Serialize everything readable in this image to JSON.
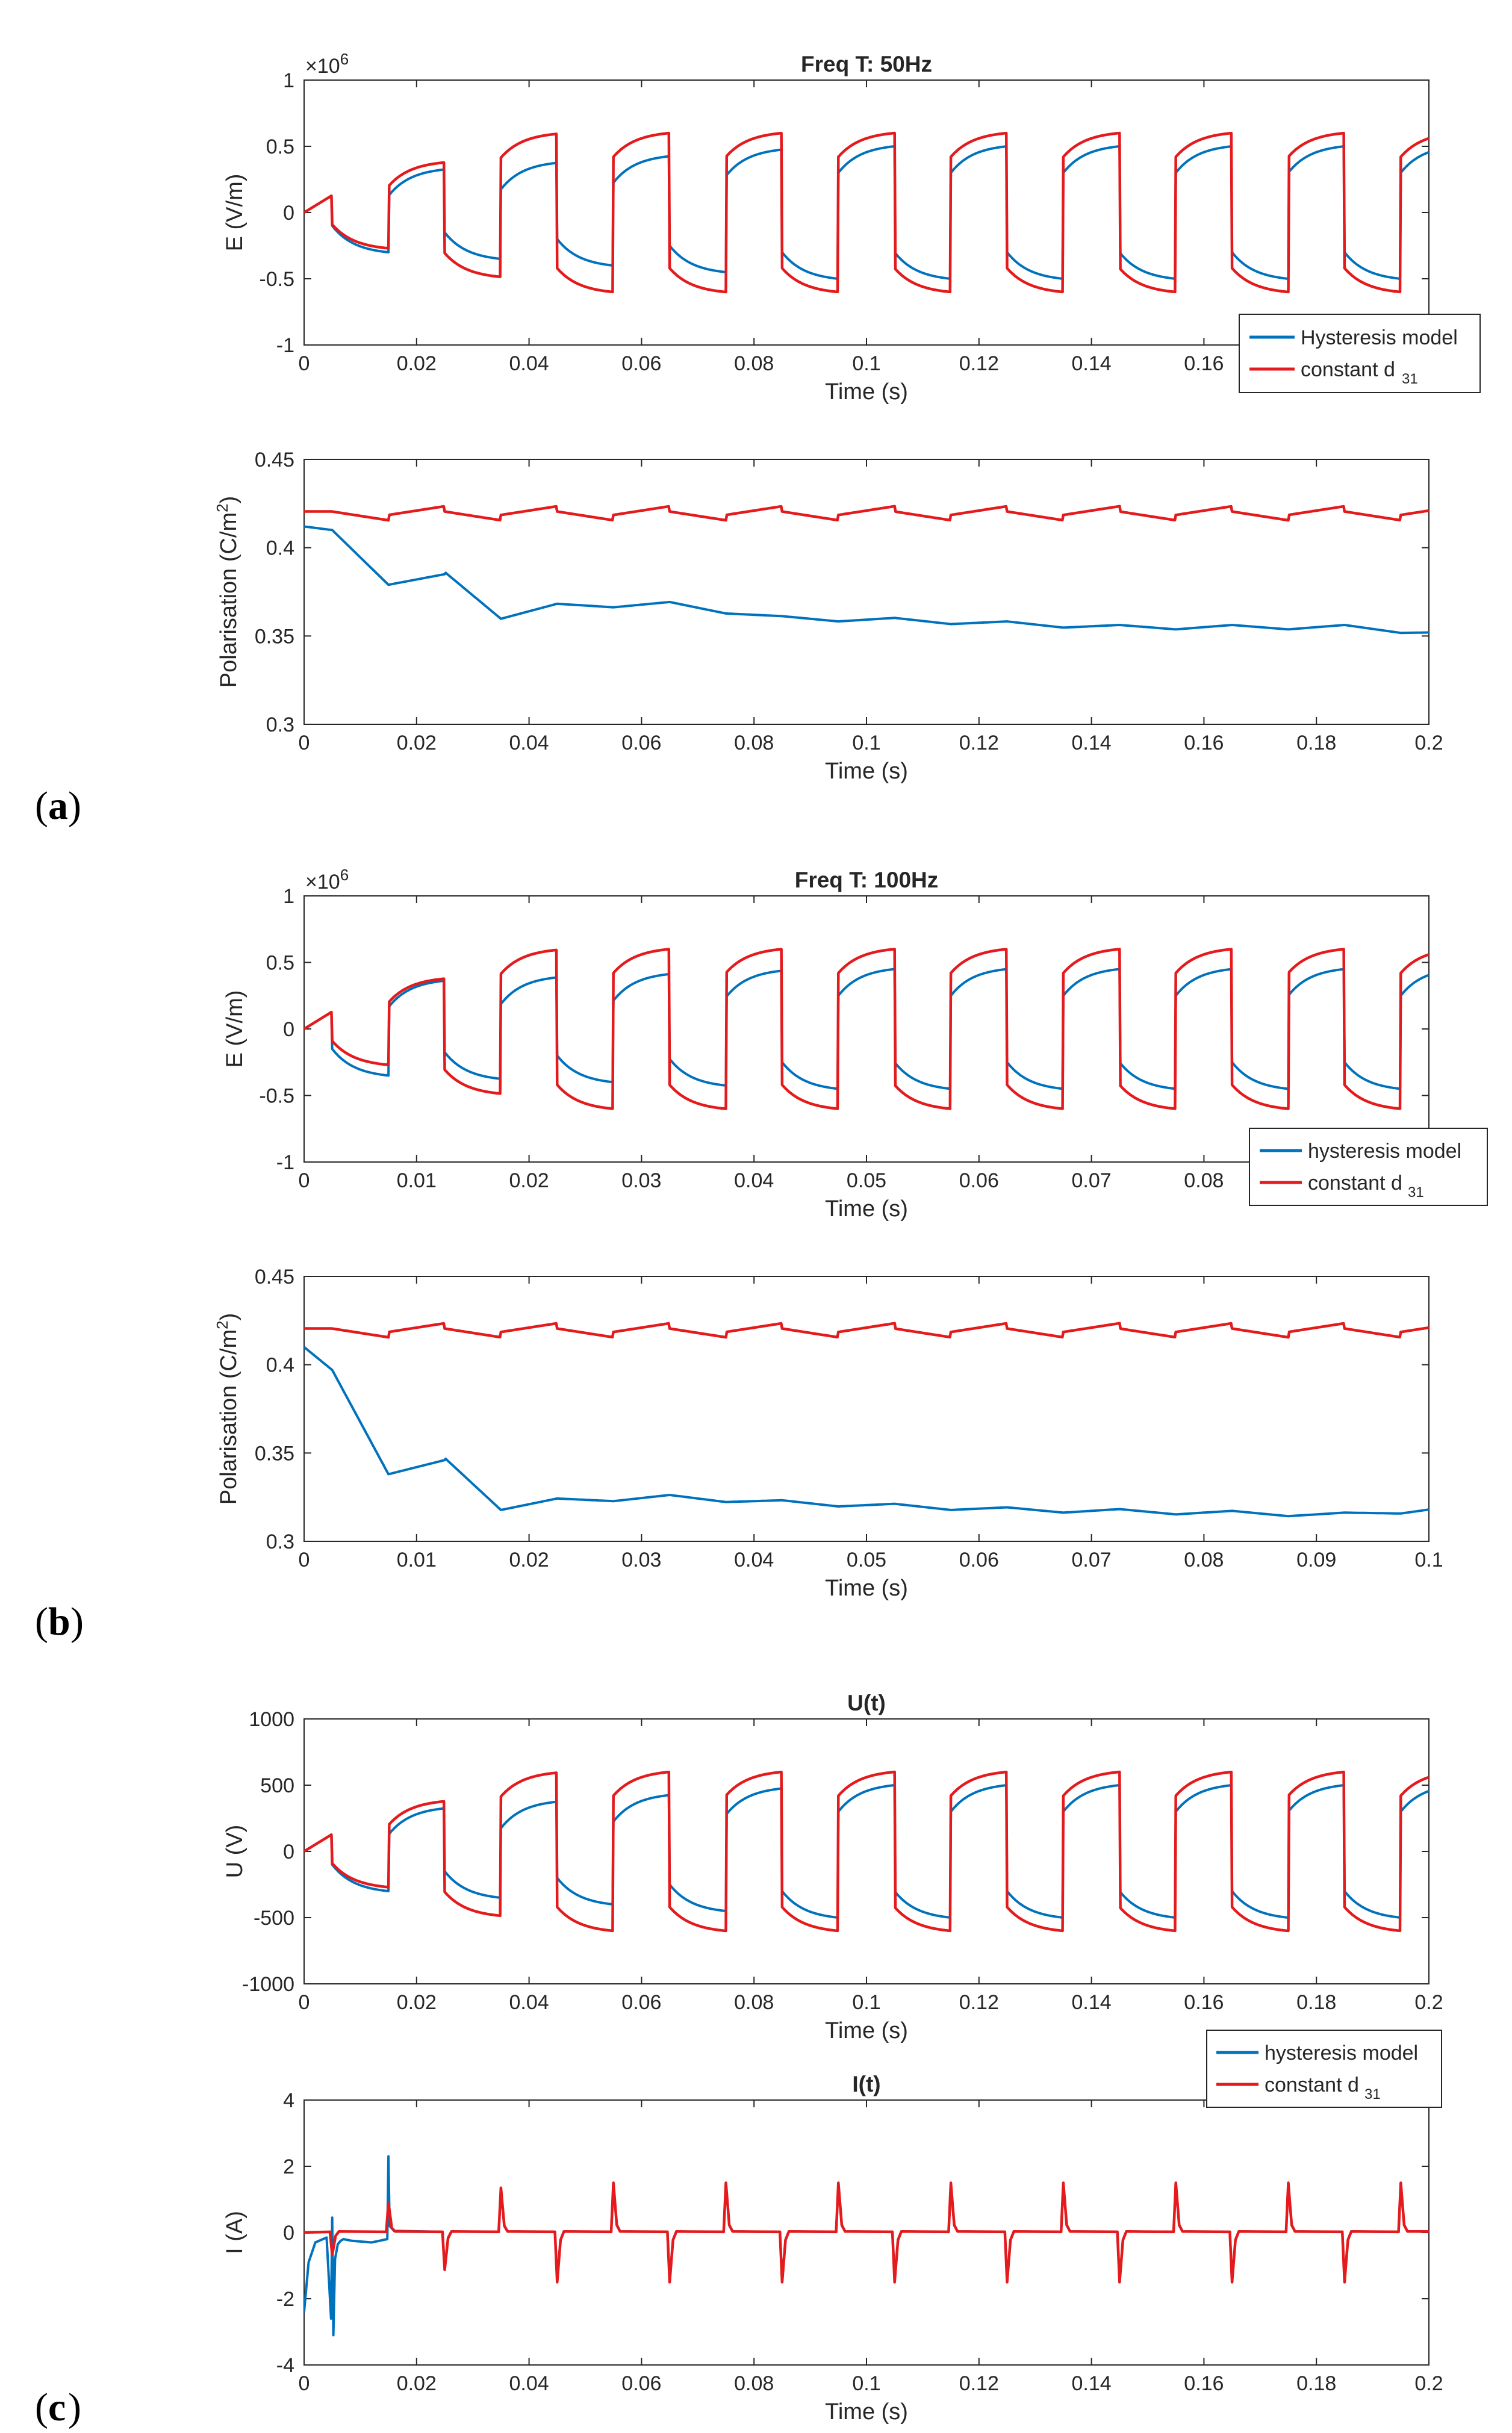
{
  "panel_labels": [
    "a",
    "b",
    "c"
  ],
  "legend_entries": {
    "a": [
      "Hysteresis model",
      "constant d",
      "31"
    ],
    "b": [
      "hysteresis model",
      "constant d",
      "31"
    ],
    "c": [
      "hysteresis model",
      "constant d",
      "31"
    ]
  },
  "colors": {
    "hysteresis": "#0072BD",
    "constant": "#E41A1C",
    "axis": "#262626",
    "grid": "#e6e6e6"
  },
  "chart_data": [
    {
      "id": "a-E",
      "type": "line",
      "title": "Freq T: 50Hz",
      "xlabel": "Time (s)",
      "ylabel": "E (V/m)",
      "exponent_label": "×10",
      "exponent_power": "6",
      "xlim": [
        0,
        0.2
      ],
      "ylim": [
        -1,
        1
      ],
      "xticks": [
        0,
        0.02,
        0.04,
        0.06,
        0.08,
        0.1,
        0.12,
        0.14,
        0.16
      ],
      "xtick_labels": [
        "0",
        "0.02",
        "0.04",
        "0.06",
        "0.08",
        "0.1",
        "0.12",
        "0.14",
        "0.16"
      ],
      "yticks": [
        -1,
        -0.5,
        0,
        0.5,
        1
      ],
      "ytick_labels": [
        "-1",
        "-0.5",
        "0",
        "0.5",
        "1"
      ],
      "signal": {
        "kind": "square",
        "period": 0.02,
        "first_switch": 0.005,
        "start": 0.005,
        "warmup_value": 0.13,
        "const_amp": 0.6,
        "const_ripple": 0.18
      },
      "series": [
        {
          "name": "Hysteresis model",
          "role": "hysteresis",
          "amp_start": 0.3,
          "amp_end": 0.5,
          "ripple": 0.2
        },
        {
          "name": "constant d31",
          "role": "constant"
        }
      ]
    },
    {
      "id": "a-P",
      "type": "line",
      "title": "",
      "xlabel": "Time (s)",
      "ylabel": "Polarisation (C/m",
      "ylabel_sup": "2",
      "ylabel_end": ")",
      "xlim": [
        0,
        0.2
      ],
      "ylim": [
        0.3,
        0.45
      ],
      "xticks": [
        0,
        0.02,
        0.04,
        0.06,
        0.08,
        0.1,
        0.12,
        0.14,
        0.16,
        0.18,
        0.2
      ],
      "xtick_labels": [
        "0",
        "0.02",
        "0.04",
        "0.06",
        "0.08",
        "0.1",
        "0.12",
        "0.14",
        "0.16",
        "0.18",
        "0.2"
      ],
      "yticks": [
        0.3,
        0.35,
        0.4,
        0.45
      ],
      "ytick_labels": [
        "0.3",
        "0.35",
        "0.4",
        "0.45"
      ],
      "signal": {
        "kind": "polarisation",
        "period": 0.02,
        "first_switch": 0.005,
        "start": 0.005,
        "const_level": 0.4195,
        "const_ripple": 0.0055
      },
      "series": [
        {
          "name": "Hysteresis model",
          "role": "hysteresis",
          "x": [
            0,
            0.005,
            0.015,
            0.025,
            0.035,
            0.045,
            0.065,
            0.085,
            0.105,
            0.125,
            0.145,
            0.165,
            0.185,
            0.2
          ],
          "y": [
            0.412,
            0.41,
            0.379,
            0.385,
            0.361,
            0.367,
            0.368,
            0.36,
            0.359,
            0.357,
            0.355,
            0.355,
            0.355,
            0.352
          ],
          "ripple": 0.005
        },
        {
          "name": "constant d31",
          "role": "constant"
        }
      ]
    },
    {
      "id": "b-E",
      "type": "line",
      "title": "Freq T: 100Hz",
      "xlabel": "Time (s)",
      "ylabel": "E (V/m)",
      "exponent_label": "×10",
      "exponent_power": "6",
      "xlim": [
        0,
        0.1
      ],
      "ylim": [
        -1,
        1
      ],
      "xticks": [
        0,
        0.01,
        0.02,
        0.03,
        0.04,
        0.05,
        0.06,
        0.07,
        0.08
      ],
      "xtick_labels": [
        "0",
        "0.01",
        "0.02",
        "0.03",
        "0.04",
        "0.05",
        "0.06",
        "0.07",
        "0.08"
      ],
      "yticks": [
        -1,
        -0.5,
        0,
        0.5,
        1
      ],
      "ytick_labels": [
        "-1",
        "-0.5",
        "0",
        "0.5",
        "1"
      ],
      "signal": {
        "kind": "square",
        "period": 0.01,
        "first_switch": 0.0025,
        "start": 0.0025,
        "warmup_value": 0.13,
        "const_amp": 0.6,
        "const_ripple": 0.18
      },
      "series": [
        {
          "name": "hysteresis model",
          "role": "hysteresis",
          "amp_start": 0.35,
          "amp_end": 0.45,
          "ripple": 0.2
        },
        {
          "name": "constant d31",
          "role": "constant"
        }
      ]
    },
    {
      "id": "b-P",
      "type": "line",
      "title": "",
      "xlabel": "Time (s)",
      "ylabel": "Polarisation (C/m",
      "ylabel_sup": "2",
      "ylabel_end": ")",
      "xlim": [
        0,
        0.1
      ],
      "ylim": [
        0.3,
        0.45
      ],
      "xticks": [
        0,
        0.01,
        0.02,
        0.03,
        0.04,
        0.05,
        0.06,
        0.07,
        0.08,
        0.09,
        0.1
      ],
      "xtick_labels": [
        "0",
        "0.01",
        "0.02",
        "0.03",
        "0.04",
        "0.05",
        "0.06",
        "0.07",
        "0.08",
        "0.09",
        "0.1"
      ],
      "yticks": [
        0.3,
        0.35,
        0.4,
        0.45
      ],
      "ytick_labels": [
        "0.3",
        "0.35",
        "0.4",
        "0.45"
      ],
      "signal": {
        "kind": "polarisation",
        "period": 0.01,
        "first_switch": 0.0025,
        "start": 0.0025,
        "const_level": 0.4195,
        "const_ripple": 0.0055
      },
      "series": [
        {
          "name": "hysteresis model",
          "role": "hysteresis",
          "x": [
            0,
            0.0025,
            0.0075,
            0.0125,
            0.0175,
            0.0225,
            0.0325,
            0.0425,
            0.0525,
            0.0625,
            0.0725,
            0.0825,
            0.0925,
            0.1
          ],
          "y": [
            0.41,
            0.397,
            0.338,
            0.346,
            0.319,
            0.323,
            0.325,
            0.322,
            0.32,
            0.318,
            0.317,
            0.316,
            0.315,
            0.318
          ],
          "ripple": 0.005
        },
        {
          "name": "constant d31",
          "role": "constant"
        }
      ]
    },
    {
      "id": "c-U",
      "type": "line",
      "title": "U(t)",
      "xlabel": "Time (s)",
      "ylabel": "U (V)",
      "xlim": [
        0,
        0.2
      ],
      "ylim": [
        -1000,
        1000
      ],
      "xticks": [
        0,
        0.02,
        0.04,
        0.06,
        0.08,
        0.1,
        0.12,
        0.14,
        0.16,
        0.18,
        0.2
      ],
      "xtick_labels": [
        "0",
        "0.02",
        "0.04",
        "0.06",
        "0.08",
        "0.1",
        "0.12",
        "0.14",
        "0.16",
        "0.18",
        "0.2"
      ],
      "yticks": [
        -1000,
        -500,
        0,
        500,
        1000
      ],
      "ytick_labels": [
        "-1000",
        "-500",
        "0",
        "500",
        "1000"
      ],
      "signal": {
        "kind": "square",
        "period": 0.02,
        "first_switch": 0.005,
        "start": 0.005,
        "warmup_value": 130,
        "const_amp": 600,
        "const_ripple": 180
      },
      "series": [
        {
          "name": "hysteresis model",
          "role": "hysteresis",
          "amp_start": 300,
          "amp_end": 500,
          "ripple": 200
        },
        {
          "name": "constant d31",
          "role": "constant"
        }
      ]
    },
    {
      "id": "c-I",
      "type": "line",
      "title": "I(t)",
      "xlabel": "Time (s)",
      "ylabel": "I (A)",
      "xlim": [
        0,
        0.2
      ],
      "ylim": [
        -4,
        4
      ],
      "xticks": [
        0,
        0.02,
        0.04,
        0.06,
        0.08,
        0.1,
        0.12,
        0.14,
        0.16,
        0.18,
        0.2
      ],
      "xtick_labels": [
        "0",
        "0.02",
        "0.04",
        "0.06",
        "0.08",
        "0.1",
        "0.12",
        "0.14",
        "0.16",
        "0.18",
        "0.2"
      ],
      "yticks": [
        -4,
        -2,
        0,
        2,
        4
      ],
      "ytick_labels": [
        "-4",
        "-2",
        "0",
        "2",
        "4"
      ],
      "signal": {
        "kind": "current",
        "period": 0.02,
        "first_switch": 0.005,
        "start": 0.005,
        "const_spike": 1.5
      },
      "series": [
        {
          "name": "hysteresis model",
          "role": "hysteresis",
          "transient_x": [
            0,
            0.0008,
            0.002,
            0.004,
            0.0048,
            0.005,
            0.0052,
            0.0055,
            0.006,
            0.0065,
            0.007,
            0.0085,
            0.012,
            0.0148,
            0.015,
            0.0152,
            0.016
          ],
          "transient_y": [
            -2.4,
            -0.9,
            -0.3,
            -0.15,
            -2.6,
            0.45,
            -3.1,
            -0.8,
            -0.35,
            -0.25,
            -0.2,
            -0.25,
            -0.3,
            -0.2,
            2.3,
            0.2,
            0.05
          ]
        },
        {
          "name": "constant d31",
          "role": "constant"
        }
      ]
    }
  ]
}
